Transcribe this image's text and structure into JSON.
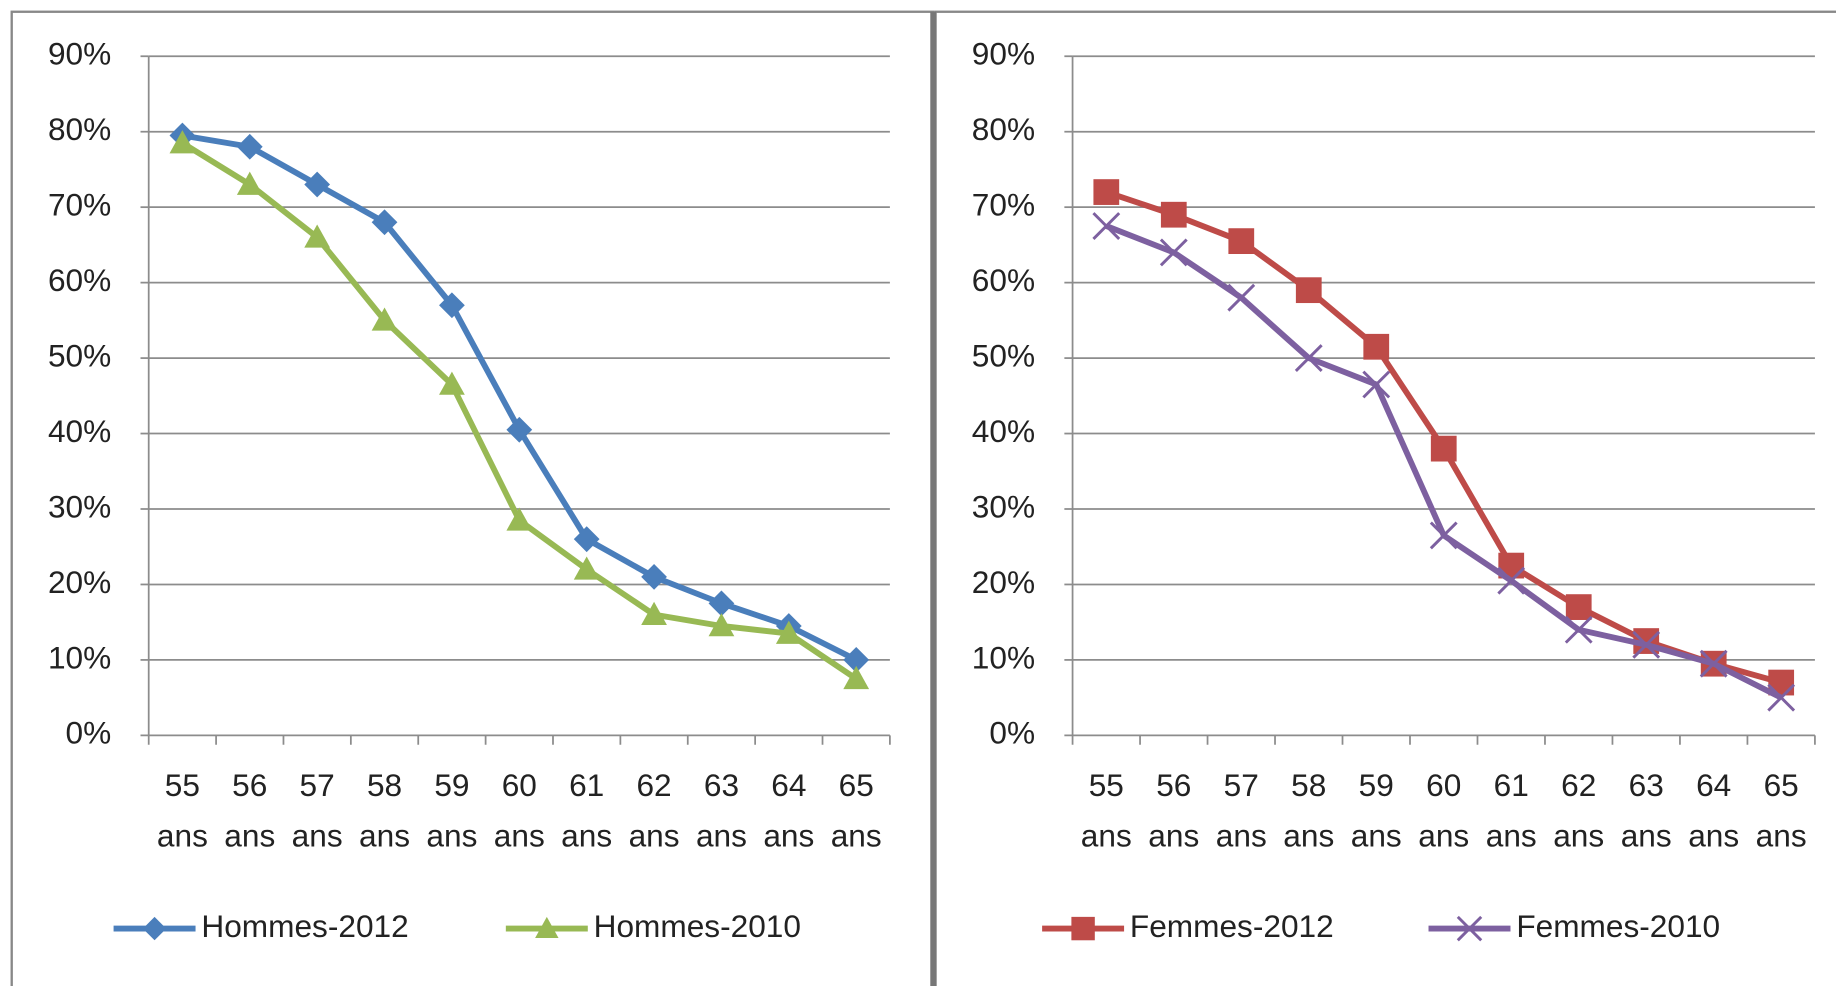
{
  "chart_data": [
    {
      "type": "line",
      "categories": [
        "55 ans",
        "56 ans",
        "57 ans",
        "58 ans",
        "59 ans",
        "60 ans",
        "61 ans",
        "62 ans",
        "63 ans",
        "64 ans",
        "65 ans"
      ],
      "series": [
        {
          "name": "Hommes-2012",
          "color": "#4a7ebb",
          "marker": "diamond",
          "values": [
            79.5,
            78,
            73,
            68,
            57,
            40.5,
            26,
            21,
            17.5,
            14.5,
            10
          ]
        },
        {
          "name": "Hommes-2010",
          "color": "#98b954",
          "marker": "triangle",
          "values": [
            78.5,
            73,
            66,
            55,
            46.5,
            28.5,
            22,
            16,
            14.5,
            13.5,
            7.5
          ]
        }
      ],
      "ylim": [
        0,
        90
      ],
      "yticks": [
        {
          "value": 0,
          "label": "0%"
        },
        {
          "value": 10,
          "label": "10%"
        },
        {
          "value": 20,
          "label": "20%"
        },
        {
          "value": 30,
          "label": "30%"
        },
        {
          "value": 40,
          "label": "40%"
        },
        {
          "value": 50,
          "label": "50%"
        },
        {
          "value": 60,
          "label": "60%"
        },
        {
          "value": 70,
          "label": "70%"
        },
        {
          "value": 80,
          "label": "80%"
        },
        {
          "value": 90,
          "label": "90%"
        }
      ],
      "grid": true,
      "legend": "bottom"
    },
    {
      "type": "line",
      "categories": [
        "55 ans",
        "56 ans",
        "57 ans",
        "58 ans",
        "59 ans",
        "60 ans",
        "61 ans",
        "62 ans",
        "63 ans",
        "64 ans",
        "65 ans"
      ],
      "series": [
        {
          "name": "Femmes-2012",
          "color": "#be4b48",
          "marker": "square",
          "values": [
            72,
            69,
            65.5,
            59,
            51.5,
            38,
            22.5,
            17,
            12.5,
            9.5,
            7
          ]
        },
        {
          "name": "Femmes-2010",
          "color": "#7d60a0",
          "marker": "x",
          "values": [
            67.5,
            64,
            58,
            50,
            46.5,
            26.5,
            20.5,
            14,
            12,
            9.5,
            5
          ]
        }
      ],
      "ylim": [
        0,
        90
      ],
      "yticks": [
        {
          "value": 0,
          "label": "0%"
        },
        {
          "value": 10,
          "label": "10%"
        },
        {
          "value": 20,
          "label": "20%"
        },
        {
          "value": 30,
          "label": "30%"
        },
        {
          "value": 40,
          "label": "40%"
        },
        {
          "value": 50,
          "label": "50%"
        },
        {
          "value": 60,
          "label": "60%"
        },
        {
          "value": 70,
          "label": "70%"
        },
        {
          "value": 80,
          "label": "80%"
        },
        {
          "value": 90,
          "label": "90%"
        }
      ],
      "grid": true,
      "legend": "bottom"
    }
  ]
}
